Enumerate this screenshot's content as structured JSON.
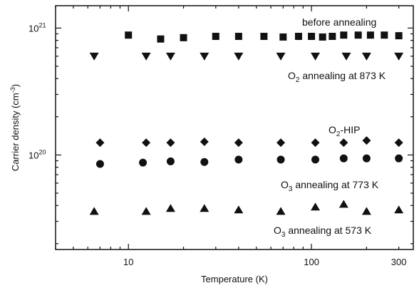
{
  "chart_data": {
    "type": "scatter",
    "title": "",
    "xlabel": "Temperature (K)",
    "ylabel_main": "Carrier density (cm",
    "ylabel_sup": "-3",
    "ylabel_close": ")",
    "x_scale": "log",
    "y_scale": "log",
    "xlim": [
      4.0,
      360
    ],
    "ylim": [
      1.8e+19,
      1.5e+21
    ],
    "x_ticks": [
      {
        "value": 10,
        "label": "10"
      },
      {
        "value": 100,
        "label": "100"
      },
      {
        "value": 300,
        "label": "300"
      }
    ],
    "y_ticks": [
      {
        "value": 1e+20,
        "base": "10",
        "exp": "20"
      },
      {
        "value": 1e+21,
        "base": "10",
        "exp": "21"
      }
    ],
    "grid": false,
    "series": [
      {
        "name": "before annealing",
        "name_prefix": "",
        "name_sub": "",
        "name_suffix": "before annealing",
        "marker": "square",
        "x": [
          10,
          15,
          20,
          30,
          40,
          55,
          70,
          85,
          100,
          115,
          130,
          150,
          180,
          210,
          250,
          300
        ],
        "y": [
          8.8e+20,
          8.2e+20,
          8.4e+20,
          8.6e+20,
          8.6e+20,
          8.6e+20,
          8.5e+20,
          8.6e+20,
          8.6e+20,
          8.5e+20,
          8.6e+20,
          8.8e+20,
          8.8e+20,
          8.8e+20,
          8.8e+20,
          8.7e+20
        ]
      },
      {
        "name": "O2 annealing at 873 K",
        "name_prefix": "O",
        "name_sub": "2",
        "name_suffix": " annealing at 873 K",
        "marker": "triangle-down",
        "x": [
          6.5,
          12.5,
          17,
          26,
          40,
          68,
          105,
          155,
          200,
          300
        ],
        "y": [
          6e+20,
          6e+20,
          6e+20,
          6e+20,
          6e+20,
          6e+20,
          6e+20,
          6e+20,
          6e+20,
          6e+20
        ]
      },
      {
        "name": "O2-HIP",
        "name_prefix": "O",
        "name_sub": "2",
        "name_suffix": "-HIP",
        "marker": "diamond",
        "x": [
          7,
          12.5,
          17,
          26,
          40,
          68,
          105,
          150,
          200,
          300
        ],
        "y": [
          1.25e+20,
          1.25e+20,
          1.25e+20,
          1.27e+20,
          1.25e+20,
          1.25e+20,
          1.25e+20,
          1.25e+20,
          1.3e+20,
          1.25e+20
        ]
      },
      {
        "name": "O3 annealing at 773 K",
        "name_prefix": "O",
        "name_sub": "3",
        "name_suffix": " annealing at 773 K",
        "marker": "circle",
        "x": [
          7,
          12,
          17,
          26,
          40,
          68,
          105,
          150,
          200,
          300
        ],
        "y": [
          8.5e+19,
          8.7e+19,
          8.9e+19,
          8.8e+19,
          9.2e+19,
          9.2e+19,
          9.2e+19,
          9.4e+19,
          9.4e+19,
          9.4e+19
        ]
      },
      {
        "name": "O3 annealing at 573 K",
        "name_prefix": "O",
        "name_sub": "3",
        "name_suffix": " annealing at 573 K",
        "marker": "triangle-up",
        "x": [
          6.5,
          12.5,
          17,
          26,
          40,
          68,
          105,
          150,
          200,
          300
        ],
        "y": [
          3.6e+19,
          3.6e+19,
          3.8e+19,
          3.8e+19,
          3.7e+19,
          3.6e+19,
          3.9e+19,
          4.1e+19,
          3.6e+19,
          3.7e+19
        ]
      }
    ]
  }
}
